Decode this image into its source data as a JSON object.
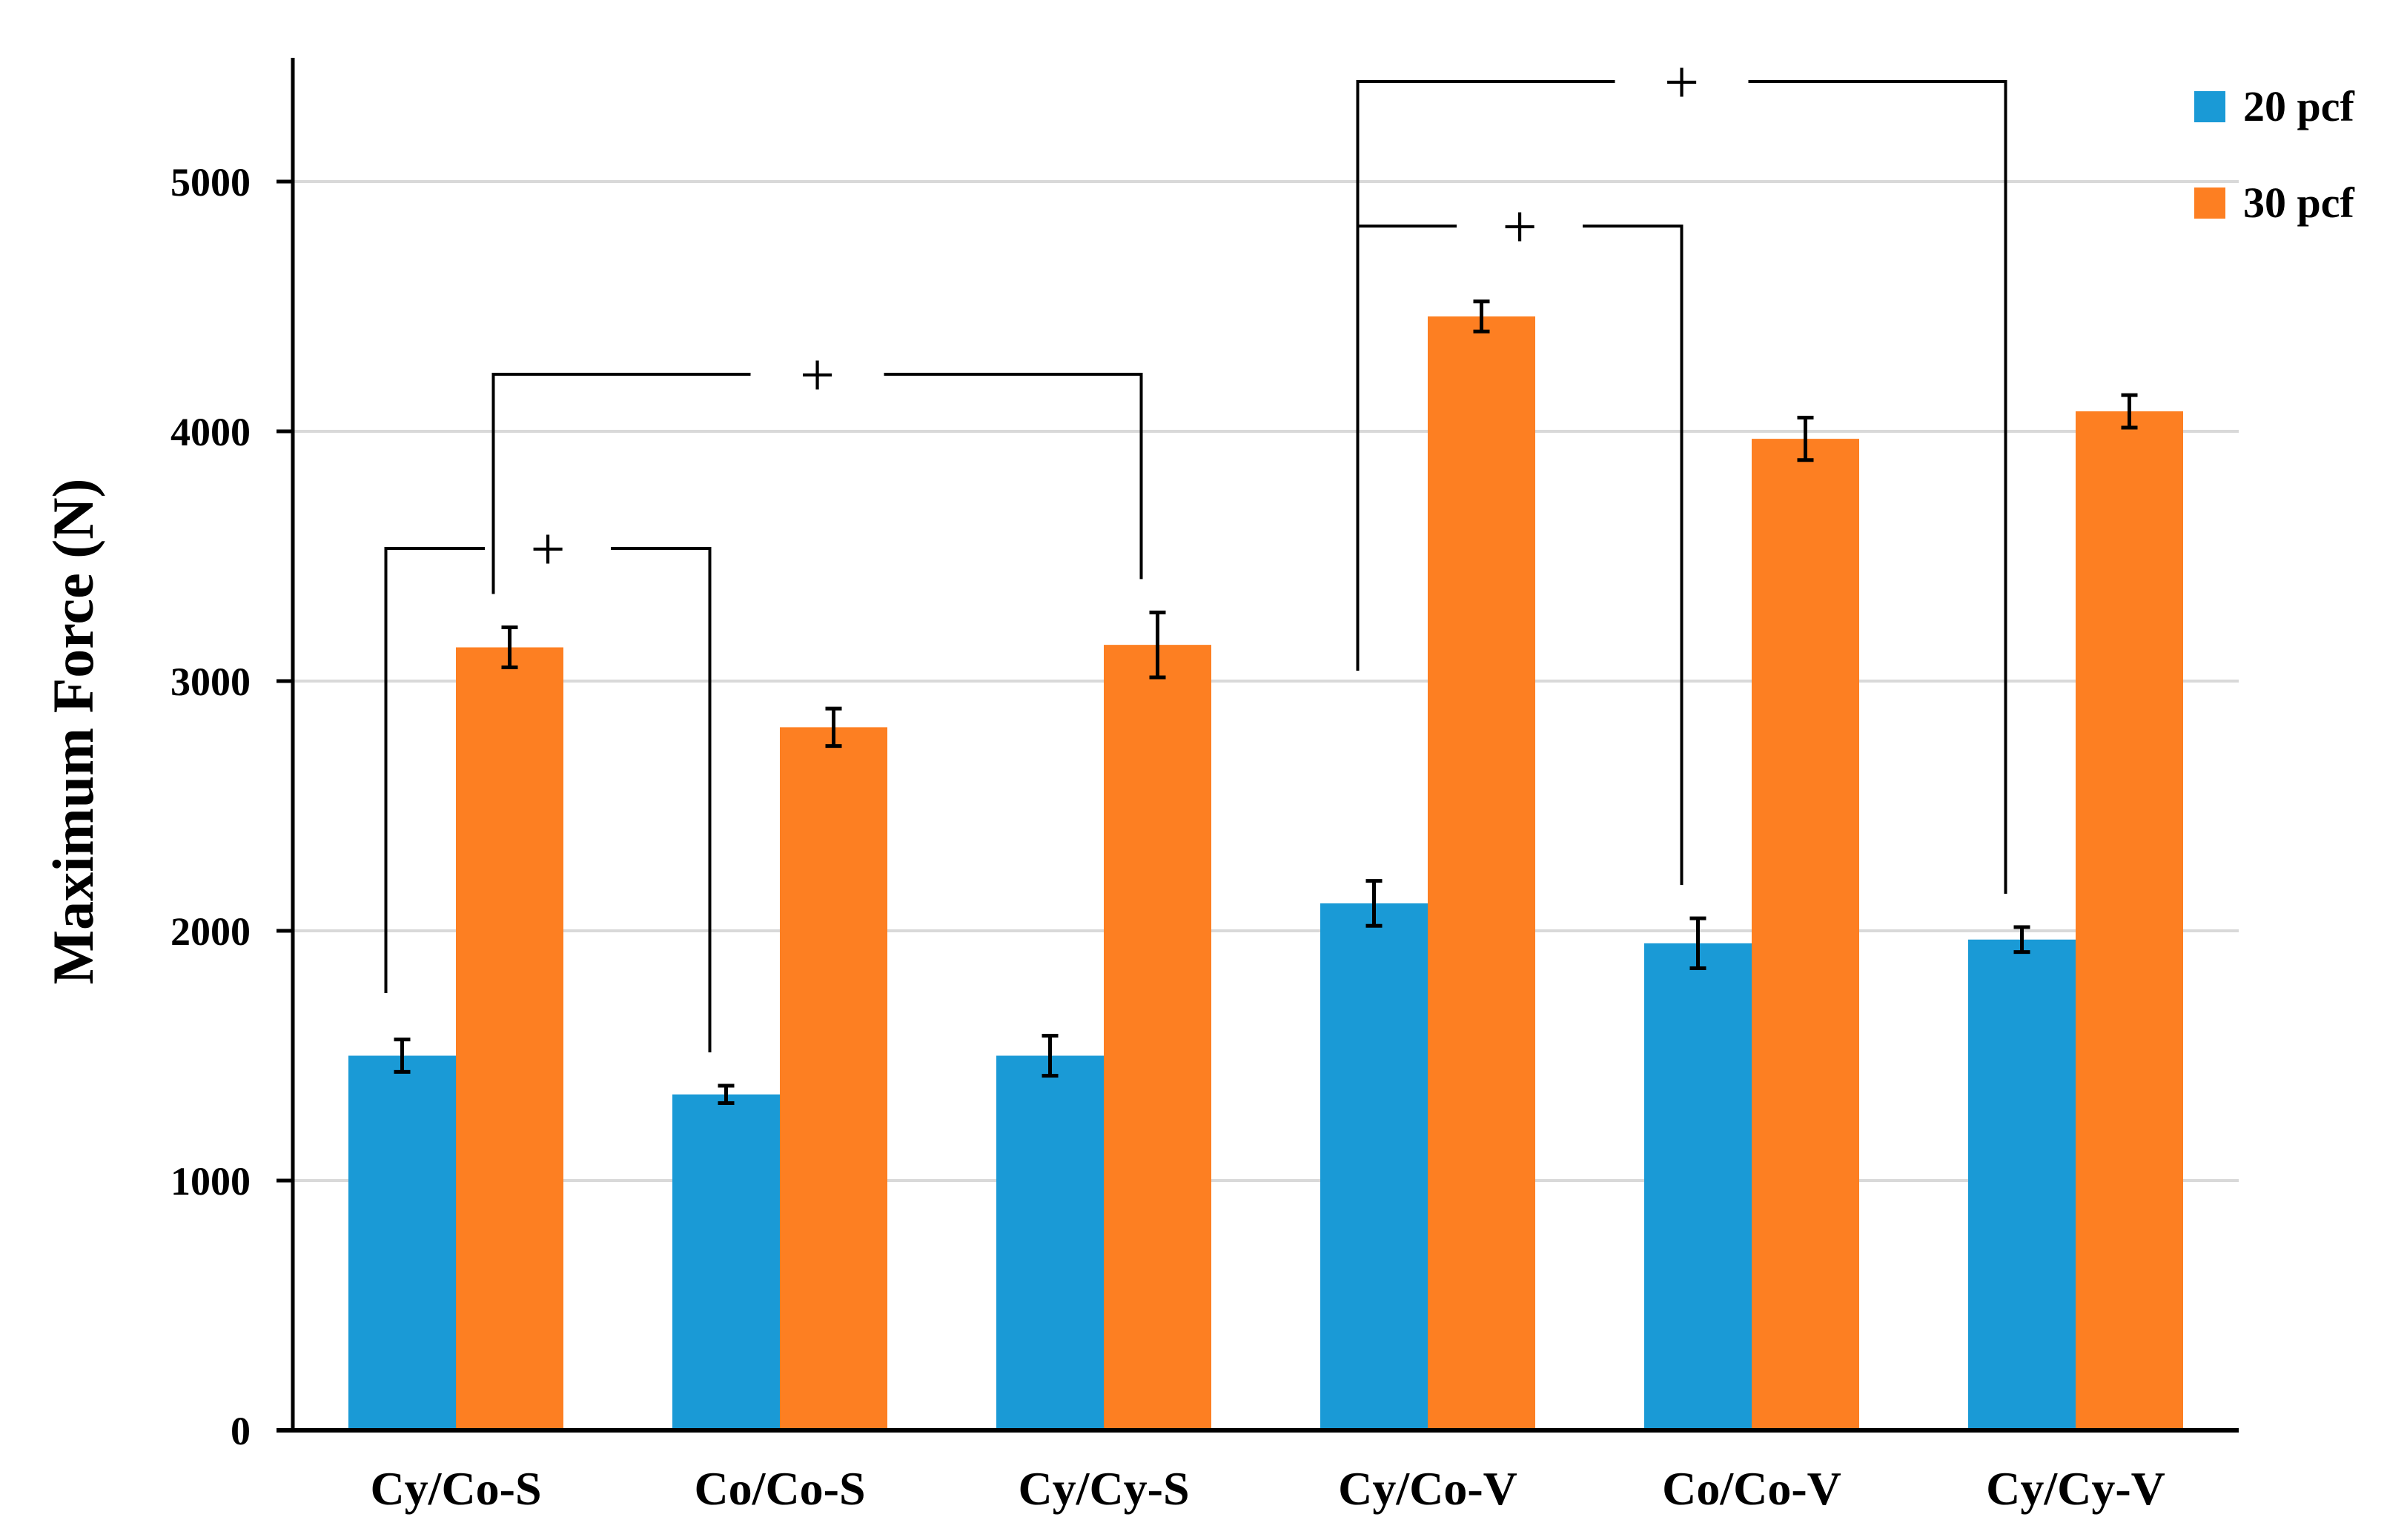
{
  "chart_data": {
    "type": "bar",
    "title": "",
    "xlabel": "",
    "ylabel": "Maximum Force (N)",
    "ylim": [
      0,
      5500
    ],
    "yticks": [
      0,
      1000,
      2000,
      3000,
      4000,
      5000
    ],
    "grid": true,
    "legend": "top-right",
    "categories": [
      "Cy/Co-S",
      "Co/Co-S",
      "Cy/Cy-S",
      "Cy/Co-V",
      "Co/Co-V",
      "Cy/Cy-V"
    ],
    "series": [
      {
        "name": "20 pcf",
        "color": "#1a9ad6",
        "values": [
          1500,
          1345,
          1500,
          2110,
          1950,
          1965
        ],
        "errors": [
          65,
          35,
          80,
          90,
          100,
          50
        ]
      },
      {
        "name": "30 pcf",
        "color": "#fd7f22",
        "values": [
          3135,
          2815,
          3145,
          4460,
          3970,
          4080
        ],
        "errors": [
          80,
          75,
          130,
          60,
          85,
          65
        ]
      }
    ],
    "significance": [
      {
        "from_category": 0,
        "from_series": 0,
        "to_category": 1,
        "to_series": 0,
        "label": "+"
      },
      {
        "from_category": 0,
        "from_series": 1,
        "to_category": 2,
        "to_series": 1,
        "label": "+"
      },
      {
        "from_category": 3,
        "from_series": 0,
        "to_category": 4,
        "to_series": 0,
        "label": "+"
      },
      {
        "from_category": 3,
        "from_series": 0,
        "to_category": 5,
        "to_series": 0,
        "label": "+"
      }
    ]
  }
}
